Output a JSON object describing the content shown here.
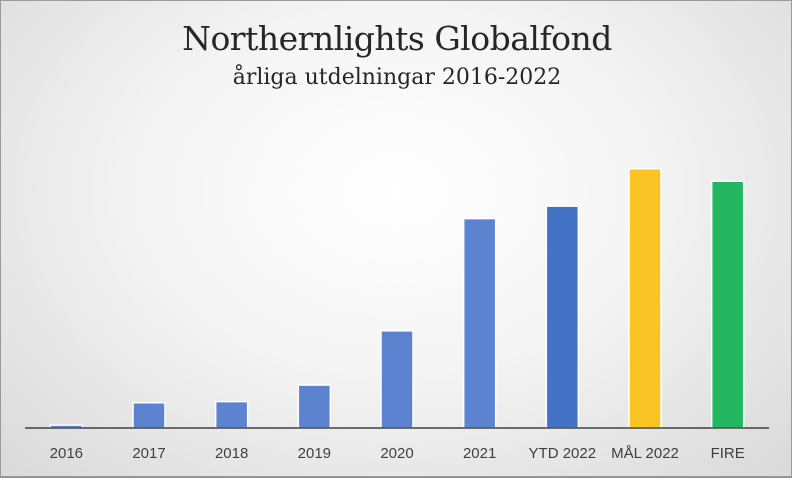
{
  "chart_data": {
    "type": "bar",
    "title": "Northernlights Globalfond",
    "subtitle": "årliga utdelningar 2016-2022",
    "xlabel": "",
    "ylabel": "",
    "categories": [
      "2016",
      "2017",
      "2018",
      "2019",
      "2020",
      "2021",
      "YTD 2022",
      "MÅL 2022",
      "FIRE"
    ],
    "values": [
      1,
      8.7,
      9.1,
      14.8,
      33.5,
      72.2,
      76.5,
      89.4,
      85.1
    ],
    "ylim": [
      0,
      100
    ],
    "grid": false,
    "legend": "none",
    "bar_colors": [
      "#5b83cf",
      "#5b83cf",
      "#5b83cf",
      "#5b83cf",
      "#5b83cf",
      "#5b83cf",
      "#4472c4",
      "#fac424",
      "#22b661"
    ],
    "axis_color": "#404040"
  }
}
